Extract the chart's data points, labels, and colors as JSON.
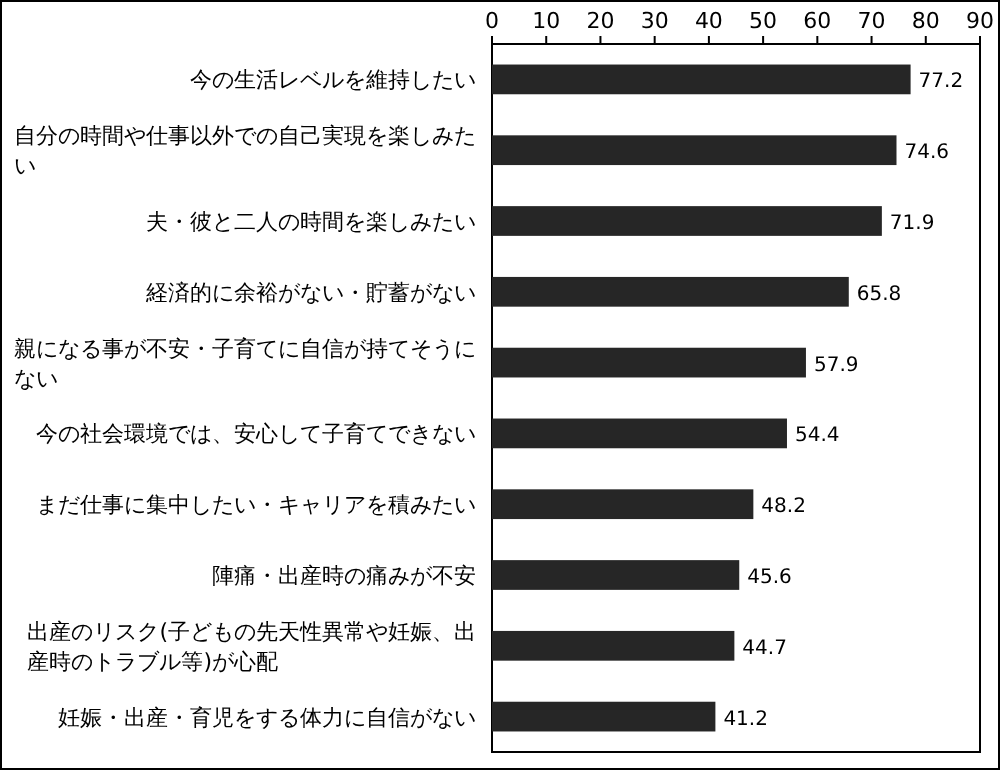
{
  "chart_data": {
    "type": "bar",
    "orientation": "horizontal",
    "categories": [
      "今の生活レベルを維持したい",
      "自分の時間や仕事以外での自己実現を楽しみたい",
      "夫・彼と二人の時間を楽しみたい",
      "経済的に余裕がない・貯蓄がない",
      "親になる事が不安・子育てに自信が持てそうにない",
      "今の社会環境では、安心して子育てできない",
      "まだ仕事に集中したい・キャリアを積みたい",
      "陣痛・出産時の痛みが不安",
      "出産のリスク(子どもの先天性異常や妊娠、出産時のトラブル等)が心配",
      "妊娠・出産・育児をする体力に自信がない"
    ],
    "values": [
      77.2,
      74.6,
      71.9,
      65.8,
      57.9,
      54.4,
      48.2,
      45.6,
      44.7,
      41.2
    ],
    "color": "#262626",
    "data_labels": true,
    "xlim": [
      0,
      90
    ],
    "xticks": [
      0,
      10,
      20,
      30,
      40,
      50,
      60,
      70,
      80,
      90
    ]
  }
}
